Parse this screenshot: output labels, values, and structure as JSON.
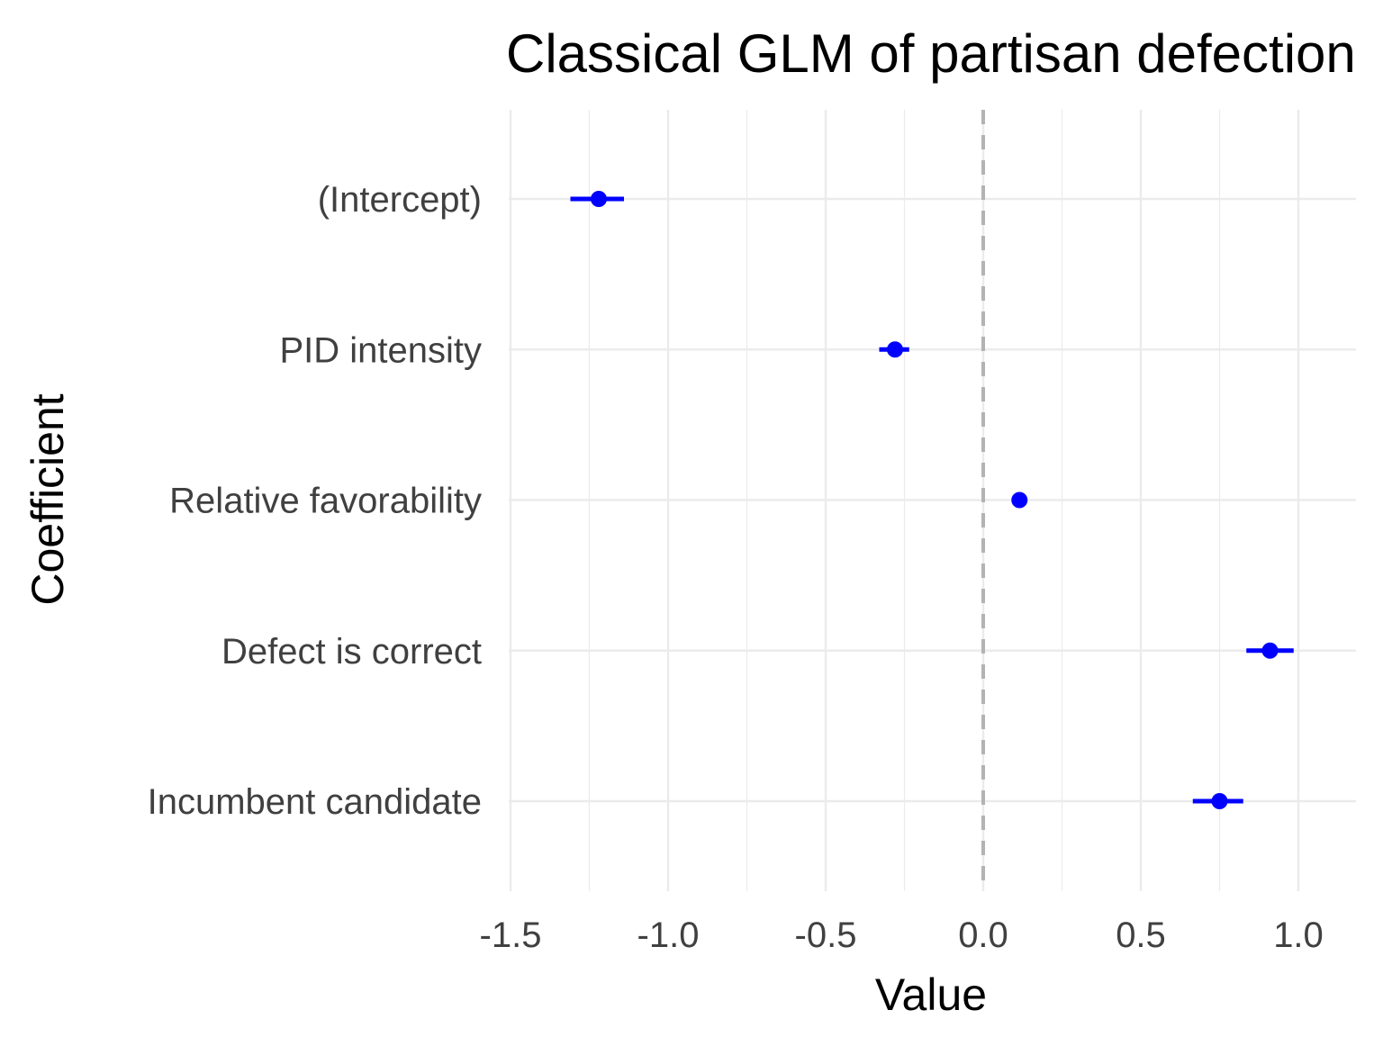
{
  "chart_data": {
    "type": "scatter",
    "title": "Classical GLM of partisan defection",
    "xlabel": "Value",
    "ylabel": "Coefficient",
    "xlim": [
      -1.5,
      1.18
    ],
    "x_ticks": [
      "-1.5",
      "-1.0",
      "-0.5",
      "0.0",
      "0.5",
      "1.0"
    ],
    "x_tick_values": [
      -1.5,
      -1.0,
      -0.5,
      0.0,
      0.5,
      1.0
    ],
    "x_minor_grid": [
      -1.25,
      -0.75,
      -0.25,
      0.25,
      0.75
    ],
    "reference_line": 0.0,
    "grid": true,
    "legend": "none",
    "categories": [
      "(Intercept)",
      "PID intensity",
      "Relative favorability",
      "Defect is correct",
      "Incumbent candidate"
    ],
    "series": [
      {
        "estimates": [
          -1.22,
          -0.28,
          0.115,
          0.91,
          0.75
        ],
        "lower": [
          -1.31,
          -0.33,
          0.115,
          0.835,
          0.665
        ],
        "upper": [
          -1.14,
          -0.235,
          0.115,
          0.985,
          0.825
        ]
      }
    ],
    "colors": {
      "point": "#0000ff",
      "grid": "#ebebeb",
      "reference": "#b3b3b3",
      "tick_text": "#404040",
      "title_text": "#000000"
    }
  }
}
